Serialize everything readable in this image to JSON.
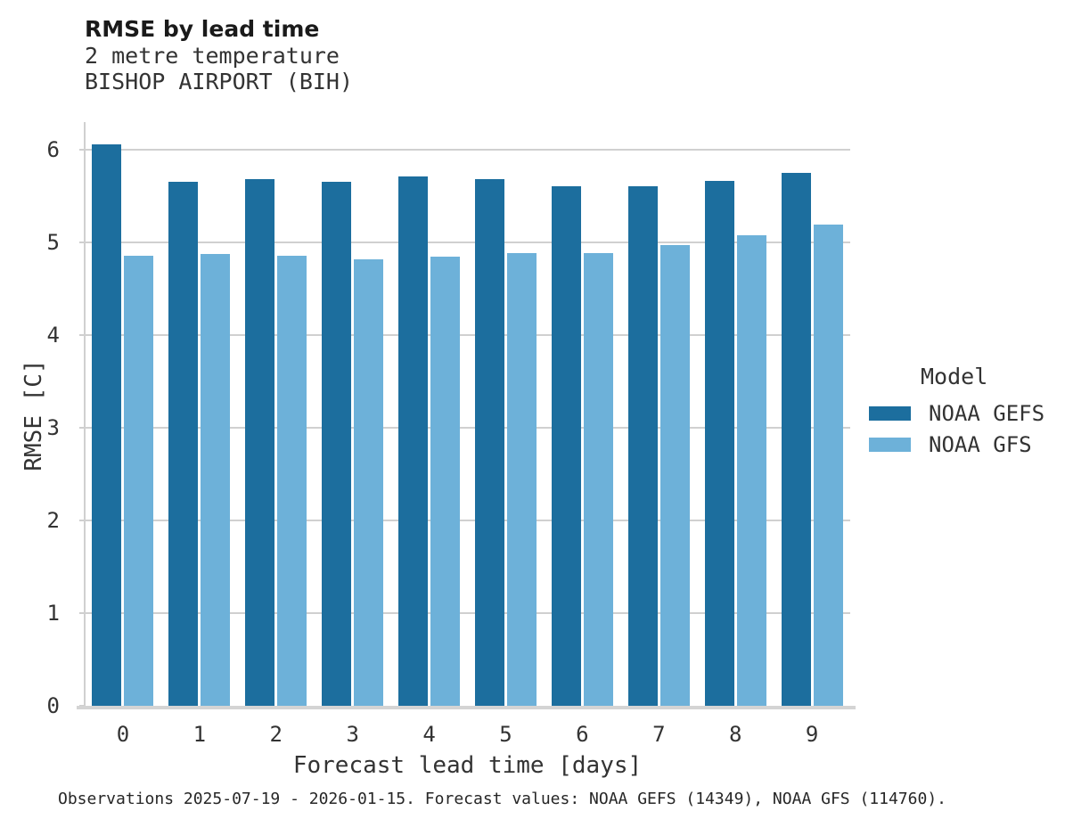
{
  "header": {
    "title": "RMSE by lead time",
    "subtitle_line1": "2 metre temperature",
    "subtitle_line2": "BISHOP AIRPORT (BIH)"
  },
  "legend": {
    "title": "Model",
    "entries": [
      "NOAA GEFS",
      "NOAA GFS"
    ]
  },
  "footer": {
    "caption": "Observations 2025-07-19 - 2026-01-15. Forecast values: NOAA GEFS (14349), NOAA GFS (114760)."
  },
  "colors": {
    "gefs_dark_blue": "#1c6e9e",
    "gfs_light_blue": "#6db1d9",
    "gridline_gray": "#d0d0d0",
    "axis_line_gray": "#d4d4d4",
    "text_dark": "#333333"
  },
  "chart_data": {
    "type": "bar",
    "title": "RMSE by lead time",
    "subtitle": [
      "2 metre temperature",
      "BISHOP AIRPORT (BIH)"
    ],
    "categories": [
      "0",
      "1",
      "2",
      "3",
      "4",
      "5",
      "6",
      "7",
      "8",
      "9"
    ],
    "series": [
      {
        "name": "NOAA GEFS",
        "color": "#1c6e9e",
        "values": [
          6.06,
          5.66,
          5.68,
          5.66,
          5.71,
          5.68,
          5.61,
          5.61,
          5.67,
          5.75
        ]
      },
      {
        "name": "NOAA GFS",
        "color": "#6db1d9",
        "values": [
          4.86,
          4.88,
          4.86,
          4.82,
          4.85,
          4.89,
          4.89,
          4.97,
          5.08,
          5.19
        ]
      }
    ],
    "xlabel": "Forecast lead time [days]",
    "ylabel": "RMSE [C]",
    "ylim": [
      0,
      6.3
    ],
    "yticks": [
      0,
      1,
      2,
      3,
      4,
      5,
      6
    ],
    "grid": true,
    "legend_title": "Model",
    "legend_position": "right",
    "caption": "Observations 2025-07-19 - 2026-01-15. Forecast values: NOAA GEFS (14349), NOAA GFS (114760)."
  }
}
